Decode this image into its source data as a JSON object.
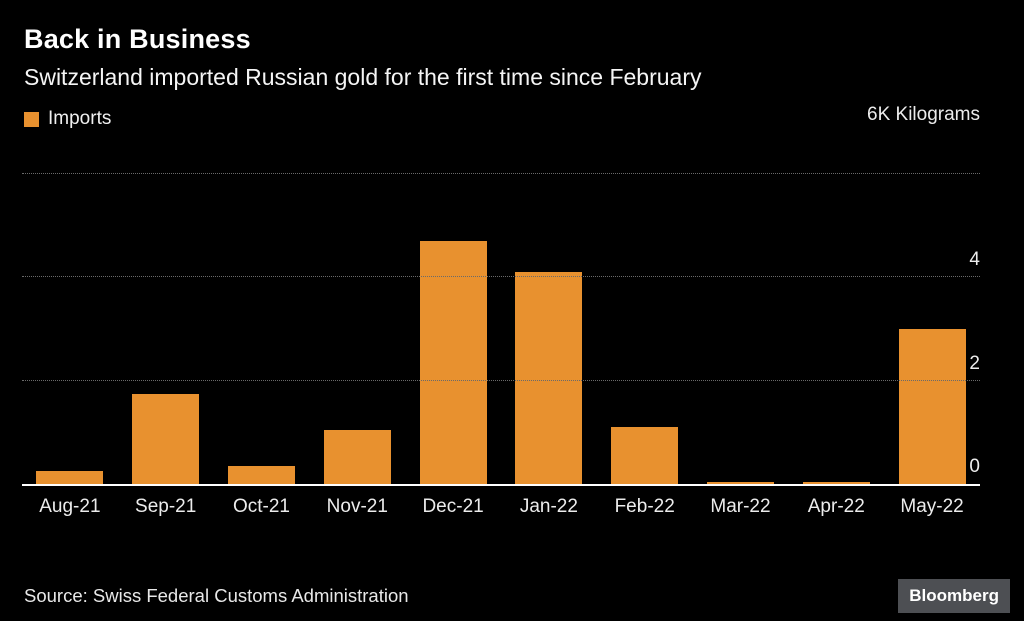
{
  "header": {
    "title": "Back in Business",
    "subtitle": "Switzerland imported Russian gold for the first time since February"
  },
  "legend": {
    "label": "Imports"
  },
  "axis": {
    "top_label": "6K Kilograms"
  },
  "footer": {
    "source": "Source: Swiss Federal Customs Administration",
    "brand": "Bloomberg"
  },
  "colors": {
    "background": "#000000",
    "bar": "#E8912F",
    "grid": "#6a6a6a",
    "baseline": "#ffffff",
    "text": "#ffffff"
  },
  "chart_data": {
    "type": "bar",
    "title": "Back in Business",
    "subtitle": "Switzerland imported Russian gold for the first time since February",
    "categories": [
      "Aug-21",
      "Sep-21",
      "Oct-21",
      "Nov-21",
      "Dec-21",
      "Jan-22",
      "Feb-22",
      "Mar-22",
      "Apr-22",
      "May-22"
    ],
    "series": [
      {
        "name": "Imports",
        "values": [
          0.25,
          1.75,
          0.35,
          1.05,
          4.7,
          4.1,
          1.1,
          0.03,
          0.03,
          3.0
        ]
      }
    ],
    "xlabel": "",
    "ylabel": "Kilograms",
    "ylim": [
      0,
      6
    ],
    "yticks": [
      0,
      2,
      4
    ],
    "top_tick_label": "6K Kilograms",
    "grid": "horizontal-dotted",
    "legend_position": "top-left",
    "bar_color": "#E8912F",
    "source": "Swiss Federal Customs Administration"
  }
}
